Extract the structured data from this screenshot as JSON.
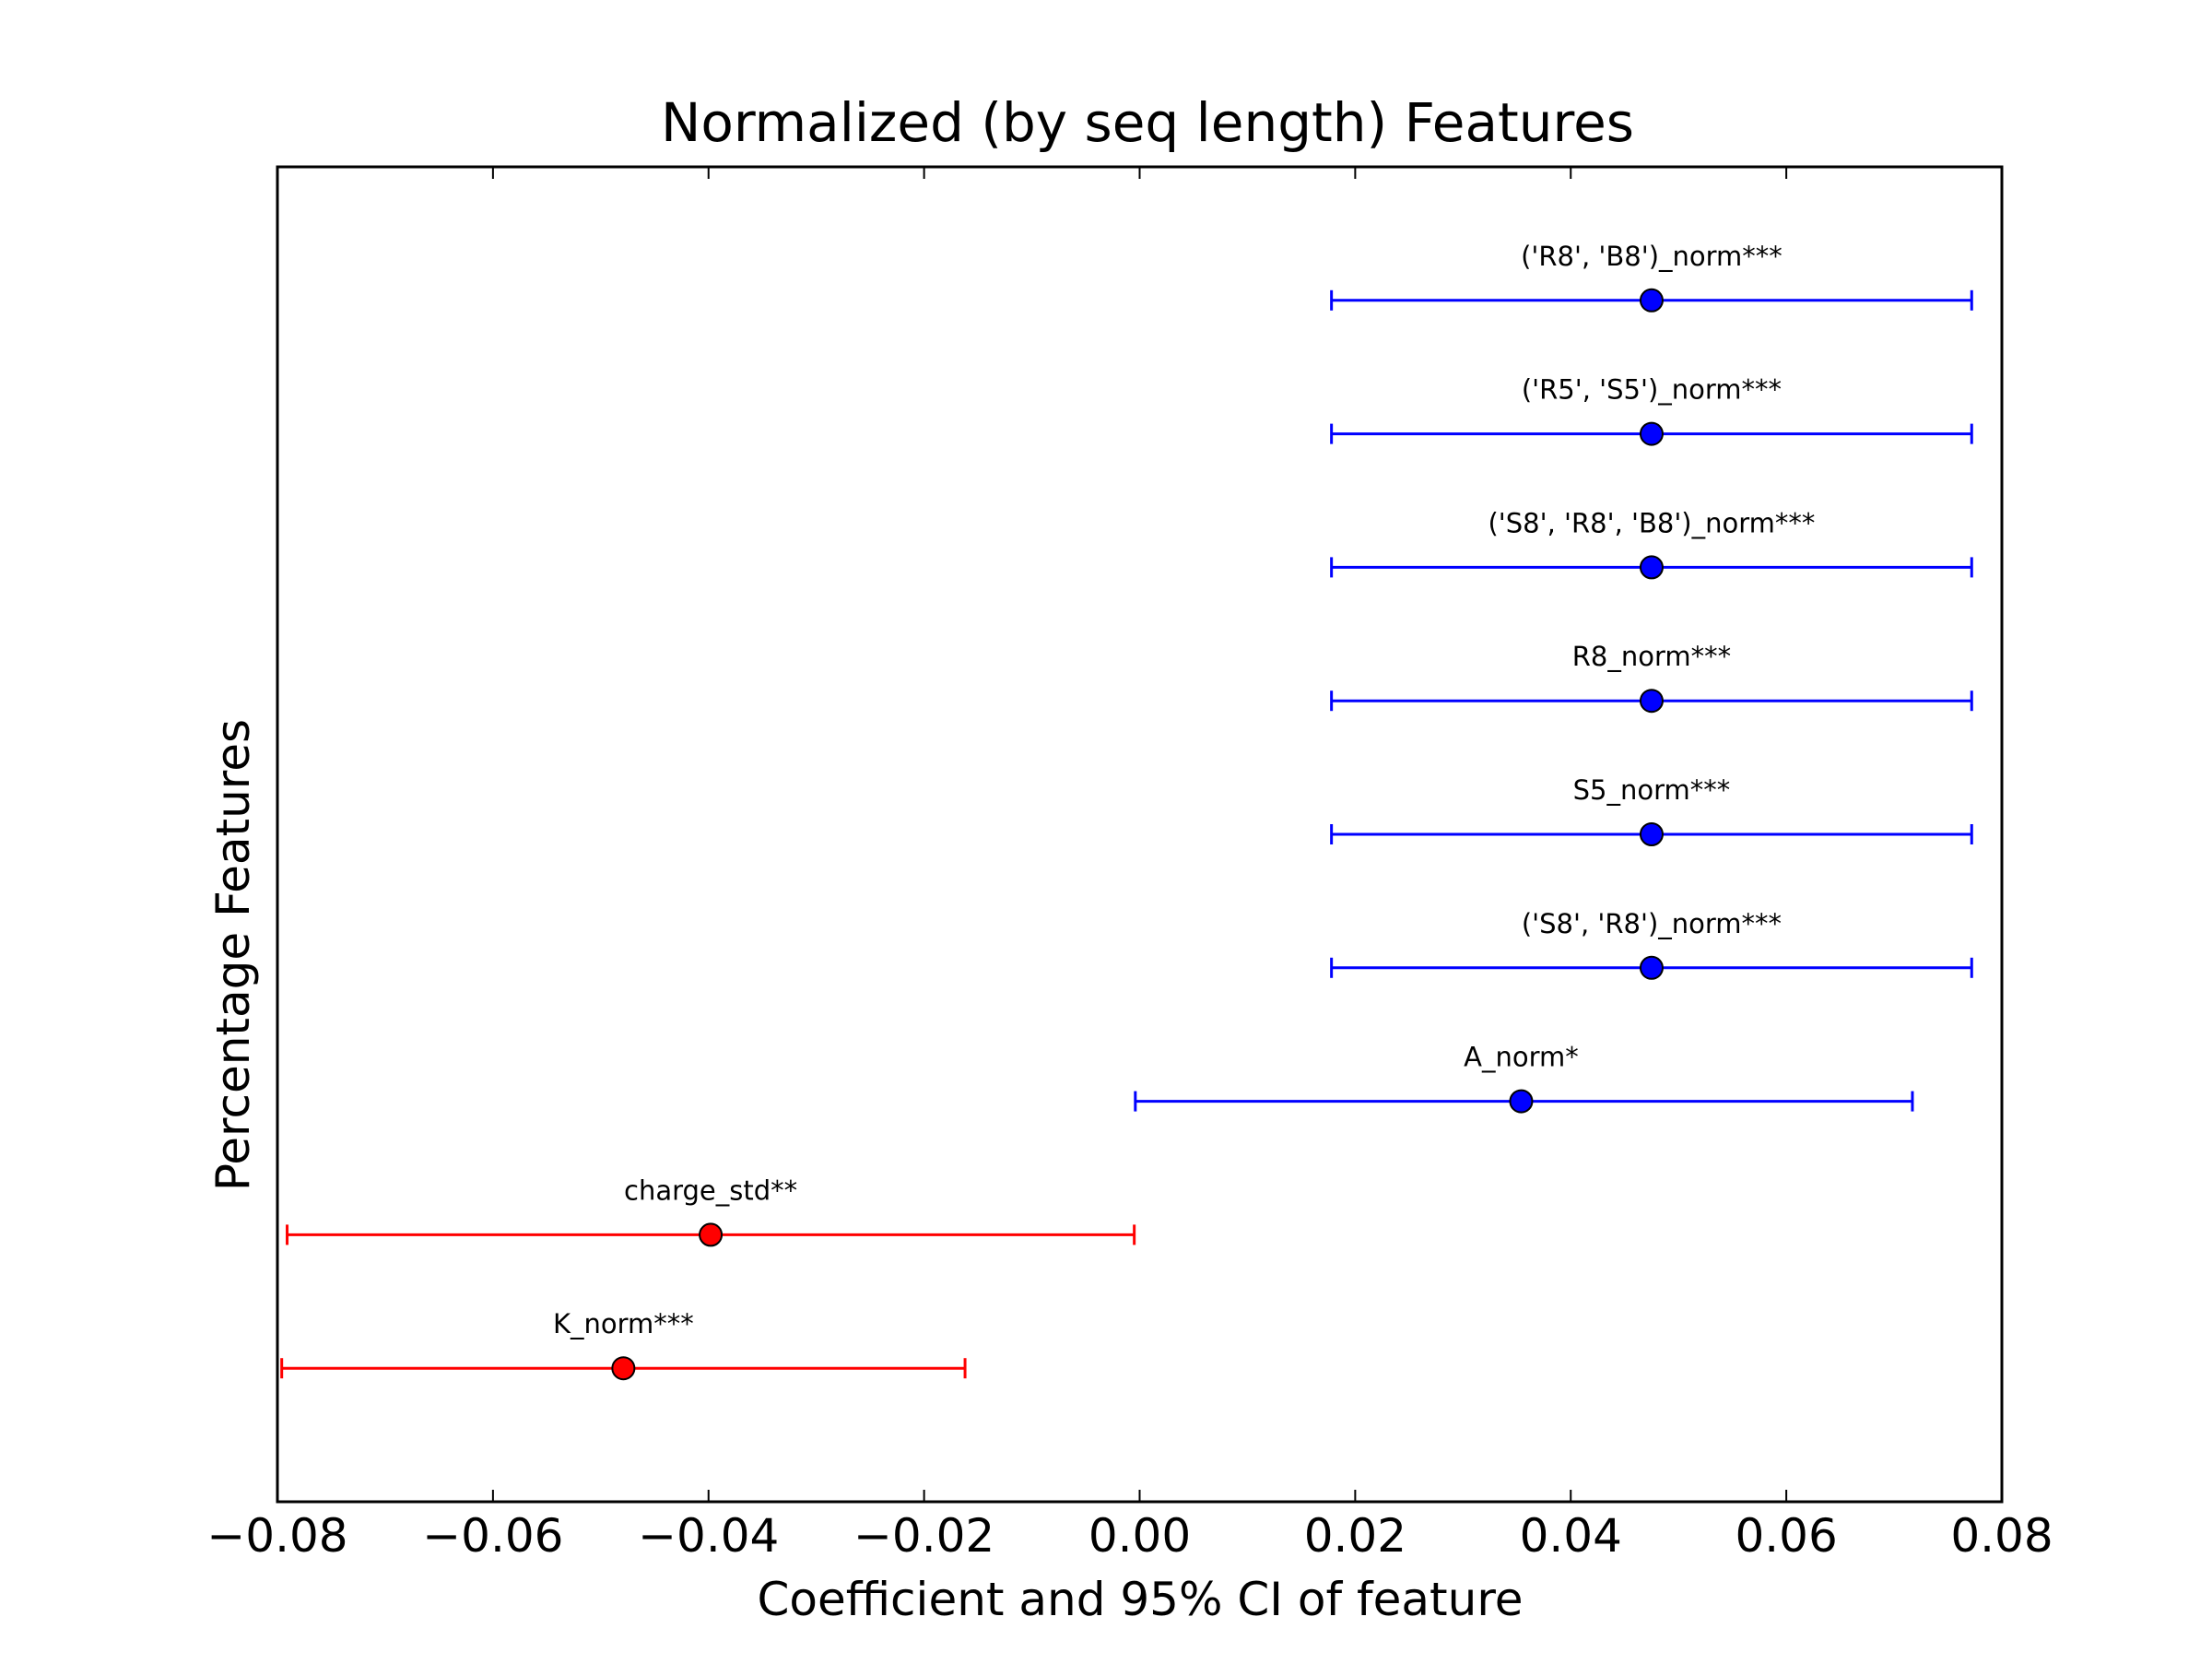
{
  "chart_data": {
    "type": "scatter",
    "title": "Normalized (by seq length) Features",
    "xlabel": "Coefficient and 95% CI of feature",
    "ylabel": "Percentage Features",
    "xlim": [
      -0.08,
      0.08
    ],
    "xticks": [
      -0.08,
      -0.06,
      -0.04,
      -0.02,
      0.0,
      0.02,
      0.04,
      0.06,
      0.08
    ],
    "xtick_labels": [
      "−0.08",
      "−0.06",
      "−0.04",
      "−0.02",
      "0.00",
      "0.02",
      "0.04",
      "0.06",
      "0.08"
    ],
    "grid": false,
    "points": [
      {
        "label": "('R8', 'B8')_norm***",
        "coef": 0.0475,
        "ci_low": 0.0178,
        "ci_high": 0.0772,
        "color": "#0000ff"
      },
      {
        "label": "('R5', 'S5')_norm***",
        "coef": 0.0475,
        "ci_low": 0.0178,
        "ci_high": 0.0772,
        "color": "#0000ff"
      },
      {
        "label": "('S8', 'R8', 'B8')_norm***",
        "coef": 0.0475,
        "ci_low": 0.0178,
        "ci_high": 0.0772,
        "color": "#0000ff"
      },
      {
        "label": "R8_norm***",
        "coef": 0.0475,
        "ci_low": 0.0178,
        "ci_high": 0.0772,
        "color": "#0000ff"
      },
      {
        "label": "S5_norm***",
        "coef": 0.0475,
        "ci_low": 0.0178,
        "ci_high": 0.0772,
        "color": "#0000ff"
      },
      {
        "label": "('S8', 'R8')_norm***",
        "coef": 0.0475,
        "ci_low": 0.0178,
        "ci_high": 0.0772,
        "color": "#0000ff"
      },
      {
        "label": "A_norm*",
        "coef": 0.0354,
        "ci_low": -0.0004,
        "ci_high": 0.0717,
        "color": "#0000ff"
      },
      {
        "label": "charge_std**",
        "coef": -0.0398,
        "ci_low": -0.0791,
        "ci_high": -0.0005,
        "color": "#ff0000"
      },
      {
        "label": "K_norm***",
        "coef": -0.0479,
        "ci_low": -0.0796,
        "ci_high": -0.0162,
        "color": "#ff0000"
      }
    ]
  }
}
